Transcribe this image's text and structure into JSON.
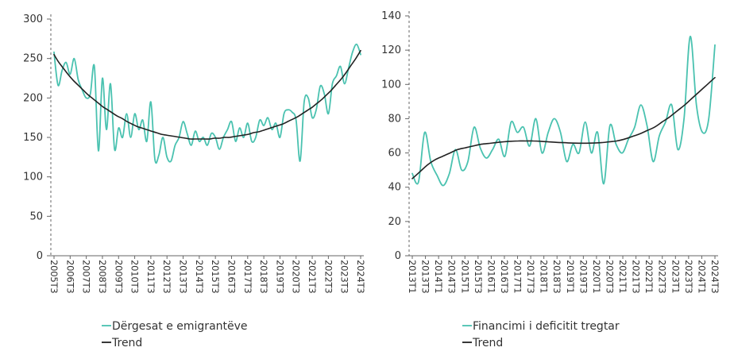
{
  "colors": {
    "series": "#4ac2b0",
    "trend": "#222222",
    "axis": "#666666",
    "text": "#333333"
  },
  "chart_data": [
    {
      "type": "line",
      "xlabel": "",
      "ylabel": "",
      "ylim": [
        0,
        300
      ],
      "yticks": [
        0,
        50,
        100,
        150,
        200,
        250,
        300
      ],
      "x_tick_labels": [
        "2005T3",
        "2006T3",
        "2007T3",
        "2008T3",
        "2009T3",
        "2010T3",
        "2011T3",
        "2012T3",
        "2013T3",
        "2014T3",
        "2015T3",
        "2016T3",
        "2017T3",
        "2018T3",
        "2019T3",
        "2020T3",
        "2021T3",
        "2022T3",
        "2023T3",
        "2024T3"
      ],
      "series": [
        {
          "name": "Dërgesat e emigrantëve",
          "values": [
            258,
            216,
            235,
            245,
            230,
            250,
            223,
            210,
            200,
            205,
            240,
            133,
            225,
            160,
            218,
            135,
            162,
            150,
            180,
            150,
            180,
            160,
            172,
            145,
            195,
            122,
            128,
            150,
            125,
            120,
            140,
            150,
            170,
            155,
            140,
            158,
            145,
            150,
            140,
            155,
            150,
            135,
            150,
            160,
            170,
            145,
            162,
            150,
            168,
            145,
            150,
            172,
            165,
            175,
            160,
            168,
            150,
            180,
            185,
            182,
            172,
            120,
            195,
            200,
            175,
            185,
            215,
            205,
            180,
            218,
            228,
            240,
            218,
            238,
            258,
            268,
            255
          ]
        },
        {
          "name": "Trend",
          "values": [
            255,
            245,
            237,
            229,
            222,
            216,
            210,
            204,
            199,
            194,
            189,
            185,
            181,
            177,
            174,
            170,
            167,
            164,
            162,
            160,
            158,
            156,
            154,
            153,
            152,
            151,
            150,
            149,
            148,
            148,
            148,
            148,
            148,
            149,
            149,
            150,
            150,
            151,
            152,
            153,
            154,
            156,
            157,
            159,
            161,
            163,
            165,
            167,
            170,
            173,
            176,
            180,
            184,
            188,
            193,
            198,
            204,
            210,
            217,
            224,
            232,
            241,
            250,
            260
          ]
        }
      ],
      "legend": [
        "Dërgesat e emigrantëve",
        "Trend"
      ],
      "legend_position": "bottom"
    },
    {
      "type": "line",
      "xlabel": "",
      "ylabel": "",
      "ylim": [
        0,
        140
      ],
      "yticks": [
        0,
        20,
        40,
        60,
        80,
        100,
        120,
        140
      ],
      "x_tick_labels": [
        "2013T1",
        "2013T3",
        "2014T1",
        "2014T3",
        "2015T1",
        "2015T3",
        "2016T1",
        "2016T3",
        "2017T1",
        "2017T3",
        "2018T1",
        "2018T3",
        "2019T1",
        "2019T3",
        "2020T1",
        "2020T3",
        "2021T1",
        "2021T3",
        "2022T1",
        "2022T3",
        "2023T1",
        "2023T3",
        "2024T1",
        "2024T3"
      ],
      "series": [
        {
          "name": "Financimi i deficitit tregtar",
          "values": [
            48,
            43,
            72,
            55,
            47,
            41,
            48,
            62,
            50,
            55,
            75,
            63,
            57,
            62,
            68,
            58,
            78,
            72,
            75,
            64,
            80,
            60,
            72,
            80,
            72,
            55,
            65,
            60,
            78,
            60,
            72,
            42,
            76,
            65,
            60,
            68,
            75,
            88,
            76,
            55,
            70,
            78,
            88,
            62,
            80,
            128,
            88,
            72,
            80,
            123
          ]
        },
        {
          "name": "Trend",
          "values": [
            45,
            49,
            53,
            56,
            58,
            60,
            62,
            63,
            64,
            65,
            65.5,
            66,
            66.5,
            66.8,
            67,
            67,
            67,
            66.8,
            66.5,
            66.2,
            66,
            65.8,
            65.7,
            65.7,
            65.8,
            66,
            66.5,
            67,
            68,
            69.5,
            71,
            73,
            75,
            78,
            81,
            84.5,
            88,
            92,
            96,
            100,
            104
          ]
        }
      ],
      "legend": [
        "Financimi i deficitit tregtar",
        "Trend"
      ],
      "legend_position": "bottom"
    }
  ]
}
